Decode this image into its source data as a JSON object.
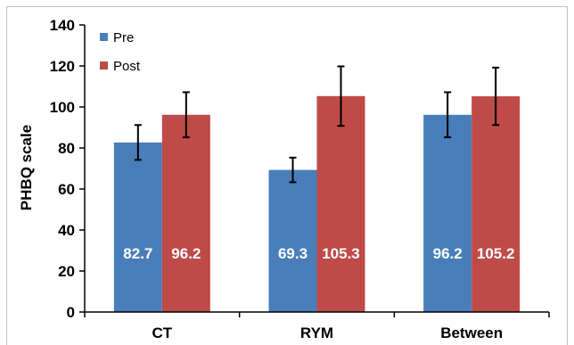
{
  "chart_data": {
    "type": "bar",
    "title": "",
    "xlabel": "",
    "ylabel": "PHBQ scale",
    "categories": [
      "CT",
      "RYM",
      "Between"
    ],
    "series": [
      {
        "name": "Pre",
        "values": [
          82.7,
          69.3,
          96.2
        ],
        "value_labels": [
          "82.7",
          "69.3",
          "96.2"
        ],
        "error": [
          8.5,
          6.0,
          11.0
        ],
        "color": "#4a7ebb"
      },
      {
        "name": "Post",
        "values": [
          96.2,
          105.3,
          105.2
        ],
        "value_labels": [
          "96.2",
          "105.3",
          "105.2"
        ],
        "error": [
          11.0,
          14.5,
          14.0
        ],
        "color": "#be4b48"
      }
    ],
    "ylim": [
      0,
      140
    ],
    "yticks": [
      0,
      20,
      40,
      60,
      80,
      100,
      120,
      140
    ],
    "ytick_labels": [
      "0",
      "20",
      "40",
      "60",
      "80",
      "100",
      "120",
      "140"
    ],
    "grid": false,
    "legend_position": "top-left"
  }
}
